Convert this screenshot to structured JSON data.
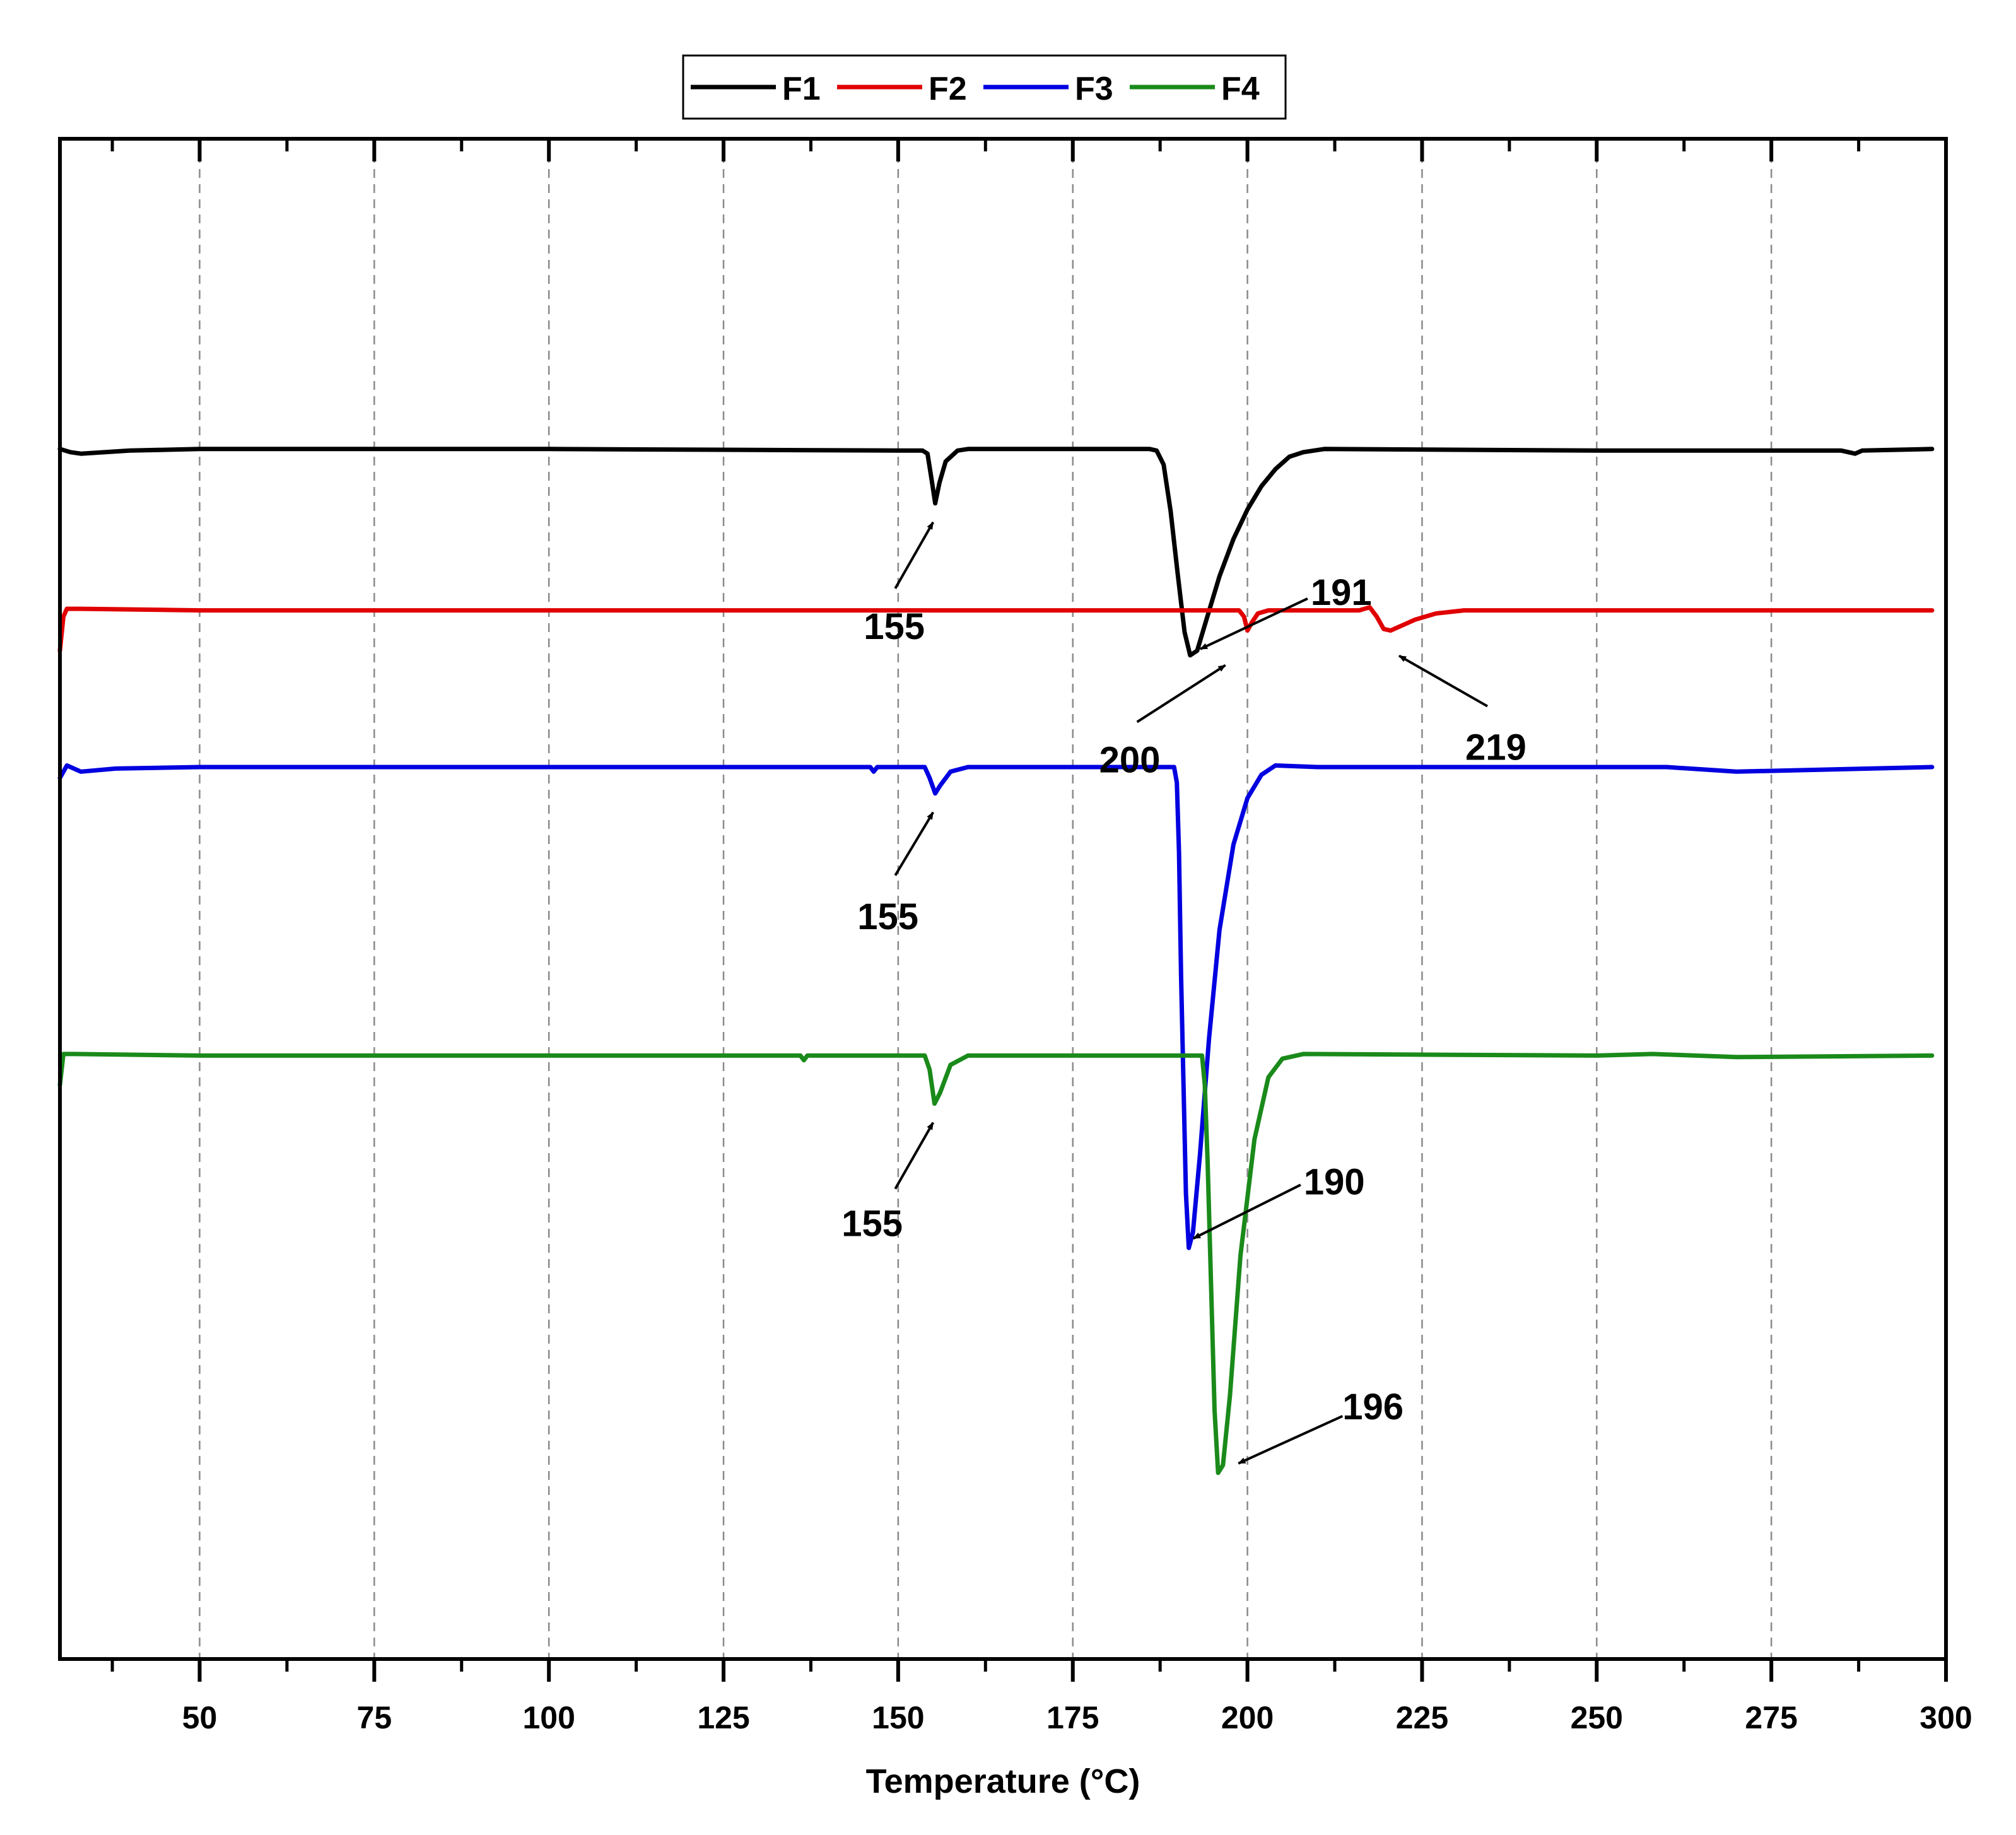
{
  "chart_data": {
    "type": "line",
    "xlabel": "Temperature (°C)",
    "ylabel": "",
    "xlim": [
      30,
      300
    ],
    "xticks": [
      50,
      75,
      100,
      125,
      150,
      175,
      200,
      225,
      250,
      275,
      300
    ],
    "minor_xticks": [
      37.5,
      62.5,
      87.5,
      112.5,
      137.5,
      162.5,
      187.5,
      212.5,
      237.5,
      262.5,
      287.5
    ],
    "grid": "vertical-dashed",
    "legend_position": "top-center",
    "y_units": "arbitrary (stacked heat-flow curves)",
    "series": [
      {
        "name": "F1",
        "color": "#000000",
        "points": [
          [
            30,
            4.0
          ],
          [
            31.5,
            3.98
          ],
          [
            33,
            3.97
          ],
          [
            40,
            3.99
          ],
          [
            50,
            4.0
          ],
          [
            100,
            4.0
          ],
          [
            150,
            3.99
          ],
          [
            153.5,
            3.99
          ],
          [
            154.2,
            3.97
          ],
          [
            154.8,
            3.8
          ],
          [
            155.3,
            3.65
          ],
          [
            155.9,
            3.78
          ],
          [
            156.8,
            3.92
          ],
          [
            158.5,
            3.99
          ],
          [
            160,
            4.0
          ],
          [
            186,
            4.0
          ],
          [
            187,
            3.99
          ],
          [
            188,
            3.9
          ],
          [
            189,
            3.6
          ],
          [
            190,
            3.2
          ],
          [
            191,
            2.82
          ],
          [
            191.8,
            2.67
          ],
          [
            192.8,
            2.7
          ],
          [
            194,
            2.88
          ],
          [
            196,
            3.18
          ],
          [
            198,
            3.42
          ],
          [
            200,
            3.61
          ],
          [
            202,
            3.76
          ],
          [
            204,
            3.87
          ],
          [
            206,
            3.95
          ],
          [
            208,
            3.98
          ],
          [
            211,
            4.0
          ],
          [
            250,
            3.99
          ],
          [
            285,
            3.99
          ],
          [
            287,
            3.97
          ],
          [
            288,
            3.99
          ],
          [
            298,
            4.0
          ]
        ]
      },
      {
        "name": "F2",
        "color": "#e00000",
        "points": [
          [
            30,
            2.7
          ],
          [
            30.5,
            2.92
          ],
          [
            31,
            2.97
          ],
          [
            33,
            2.97
          ],
          [
            50,
            2.96
          ],
          [
            100,
            2.96
          ],
          [
            150,
            2.96
          ],
          [
            198.8,
            2.96
          ],
          [
            199.5,
            2.92
          ],
          [
            200,
            2.83
          ],
          [
            200.6,
            2.88
          ],
          [
            201.5,
            2.94
          ],
          [
            203,
            2.96
          ],
          [
            216,
            2.96
          ],
          [
            217.5,
            2.98
          ],
          [
            218.5,
            2.92
          ],
          [
            219.5,
            2.84
          ],
          [
            220.5,
            2.83
          ],
          [
            222,
            2.86
          ],
          [
            224,
            2.9
          ],
          [
            227,
            2.94
          ],
          [
            231,
            2.96
          ],
          [
            298,
            2.96
          ]
        ]
      },
      {
        "name": "F3",
        "color": "#0000e0",
        "points": [
          [
            30,
            1.88
          ],
          [
            31,
            1.96
          ],
          [
            33,
            1.92
          ],
          [
            38,
            1.94
          ],
          [
            50,
            1.95
          ],
          [
            100,
            1.95
          ],
          [
            146,
            1.95
          ],
          [
            146.5,
            1.92
          ],
          [
            147,
            1.95
          ],
          [
            153.8,
            1.95
          ],
          [
            154.5,
            1.88
          ],
          [
            155.3,
            1.78
          ],
          [
            156,
            1.83
          ],
          [
            157.5,
            1.92
          ],
          [
            160,
            1.95
          ],
          [
            189.5,
            1.95
          ],
          [
            189.9,
            1.85
          ],
          [
            190.2,
            1.4
          ],
          [
            190.5,
            0.6
          ],
          [
            190.8,
            0.0
          ],
          [
            191.2,
            -0.8
          ],
          [
            191.6,
            -1.15
          ],
          [
            192.2,
            -1.05
          ],
          [
            193.2,
            -0.55
          ],
          [
            194.5,
            0.2
          ],
          [
            196,
            0.9
          ],
          [
            198,
            1.45
          ],
          [
            200,
            1.75
          ],
          [
            202,
            1.9
          ],
          [
            204,
            1.96
          ],
          [
            210,
            1.95
          ],
          [
            260,
            1.95
          ],
          [
            270,
            1.92
          ],
          [
            298,
            1.95
          ]
        ]
      },
      {
        "name": "F4",
        "color": "#1a8a1a",
        "points": [
          [
            30,
            -0.1
          ],
          [
            30.5,
            0.1
          ],
          [
            32,
            0.1
          ],
          [
            50,
            0.09
          ],
          [
            100,
            0.09
          ],
          [
            136,
            0.09
          ],
          [
            136.5,
            0.06
          ],
          [
            137,
            0.09
          ],
          [
            153.8,
            0.09
          ],
          [
            154.5,
            0.0
          ],
          [
            155.2,
            -0.22
          ],
          [
            156,
            -0.15
          ],
          [
            157.5,
            0.03
          ],
          [
            160,
            0.09
          ],
          [
            193.5,
            0.09
          ],
          [
            193.9,
            -0.1
          ],
          [
            194.3,
            -0.6
          ],
          [
            194.8,
            -1.4
          ],
          [
            195.3,
            -2.2
          ],
          [
            195.8,
            -2.6
          ],
          [
            196.5,
            -2.55
          ],
          [
            197.5,
            -2.1
          ],
          [
            199,
            -1.2
          ],
          [
            201,
            -0.45
          ],
          [
            203,
            -0.05
          ],
          [
            205,
            0.07
          ],
          [
            208,
            0.1
          ],
          [
            250,
            0.09
          ],
          [
            258,
            0.1
          ],
          [
            270,
            0.08
          ],
          [
            298,
            0.09
          ]
        ]
      }
    ],
    "annotations": [
      {
        "text": "155",
        "series": "F1",
        "x": 155
      },
      {
        "text": "191",
        "series": "F1",
        "x": 191
      },
      {
        "text": "200",
        "series": "F2",
        "x": 200
      },
      {
        "text": "219",
        "series": "F2",
        "x": 219
      },
      {
        "text": "155",
        "series": "F3",
        "x": 155
      },
      {
        "text": "190",
        "series": "F3",
        "x": 190
      },
      {
        "text": "155",
        "series": "F4",
        "x": 155
      },
      {
        "text": "196",
        "series": "F4",
        "x": 196
      }
    ]
  }
}
